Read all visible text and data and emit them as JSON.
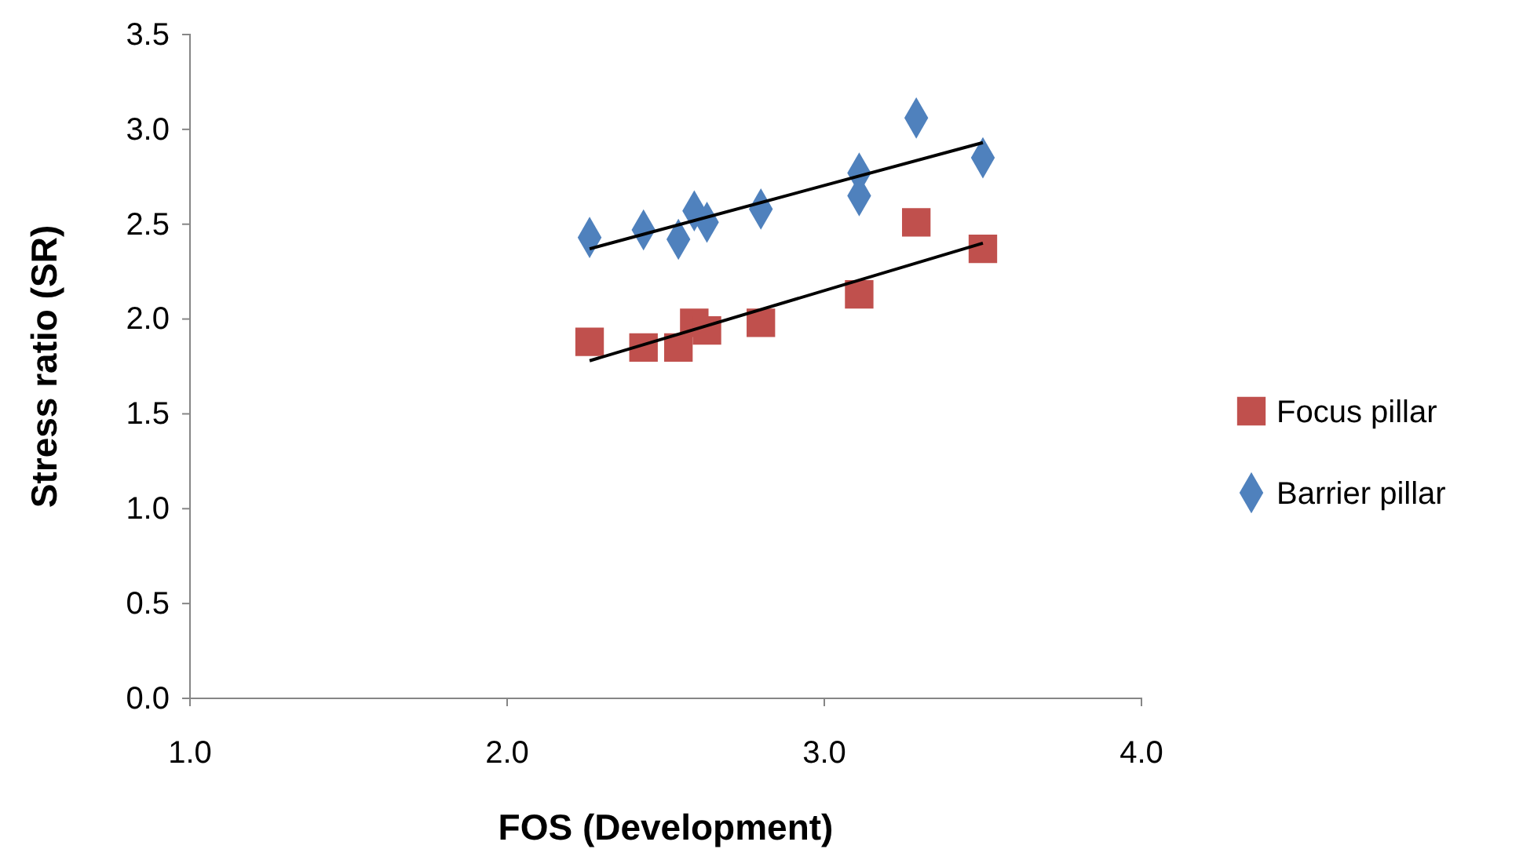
{
  "chart_data": {
    "type": "scatter",
    "xlabel": "FOS (Development)",
    "ylabel": "Stress ratio (SR)",
    "xlim": [
      1,
      4
    ],
    "xticks": [
      {
        "value": 1,
        "label": "1.0"
      },
      {
        "value": 2,
        "label": "2.0"
      },
      {
        "value": 3,
        "label": "3.0"
      },
      {
        "value": 4,
        "label": "4.0"
      }
    ],
    "ylim": [
      0,
      3.5
    ],
    "yticks": [
      {
        "value": 0,
        "label": "0.0"
      },
      {
        "value": 0.5,
        "label": "0.5"
      },
      {
        "value": 1,
        "label": "1.0"
      },
      {
        "value": 1.5,
        "label": "1.5"
      },
      {
        "value": 2,
        "label": "2.0"
      },
      {
        "value": 2.5,
        "label": "2.5"
      },
      {
        "value": 3,
        "label": "3.0"
      },
      {
        "value": 3.5,
        "label": "3.5"
      }
    ],
    "grid": false,
    "legend": "right",
    "series": [
      {
        "name": "Focus pillar",
        "color": "#c0504d",
        "marker": "square",
        "x": [
          2.26,
          2.43,
          2.54,
          2.59,
          2.63,
          2.8,
          3.11,
          3.29,
          3.5
        ],
        "values": [
          1.88,
          1.85,
          1.85,
          1.98,
          1.94,
          1.98,
          2.13,
          2.51,
          2.37
        ]
      },
      {
        "name": "Barrier pillar",
        "color": "#4f81bd",
        "marker": "diamond",
        "x": [
          2.26,
          2.43,
          2.54,
          2.59,
          2.63,
          2.8,
          3.11,
          3.11,
          3.29,
          3.5
        ],
        "values": [
          2.43,
          2.47,
          2.42,
          2.57,
          2.51,
          2.58,
          2.77,
          2.65,
          3.06,
          2.85
        ]
      },
      {
        "type": "line",
        "color": "#000000",
        "marker": "none",
        "x": [
          2.26,
          3.5
        ],
        "values": [
          1.78,
          2.4
        ]
      },
      {
        "type": "line",
        "color": "#000000",
        "marker": "none",
        "x": [
          2.26,
          3.5
        ],
        "values": [
          2.37,
          2.93
        ]
      }
    ]
  }
}
